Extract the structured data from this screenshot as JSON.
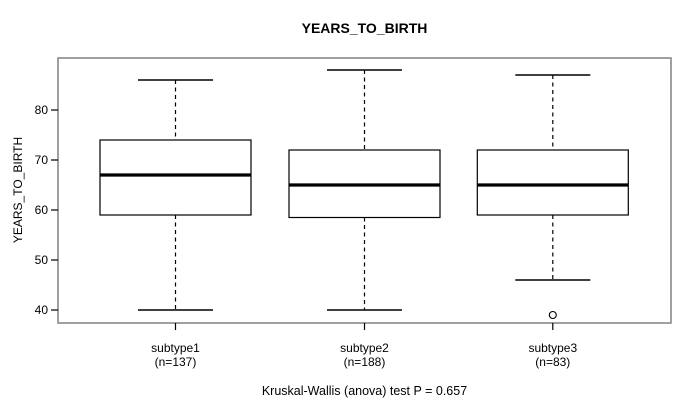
{
  "title": "YEARS_TO_BIRTH",
  "chart_data": {
    "type": "boxplot",
    "title": "YEARS_TO_BIRTH",
    "xlabel": "",
    "ylabel": "YEARS_TO_BIRTH",
    "caption": "Kruskal-Wallis (anova) test P = 0.657",
    "yticks": [
      40,
      50,
      60,
      70,
      80
    ],
    "ylim": [
      37,
      90
    ],
    "grid": false,
    "legend": null,
    "groups": [
      {
        "label": "subtype1",
        "n": 137,
        "n_label": "(n=137)",
        "whisker_low": 40,
        "q1": 59,
        "median": 67,
        "q3": 74,
        "whisker_high": 86,
        "outliers": []
      },
      {
        "label": "subtype2",
        "n": 188,
        "n_label": "(n=188)",
        "whisker_low": 40,
        "q1": 58.5,
        "median": 65,
        "q3": 72,
        "whisker_high": 88,
        "outliers": []
      },
      {
        "label": "subtype3",
        "n": 83,
        "n_label": "(n=83)",
        "whisker_low": 46,
        "q1": 59,
        "median": 65,
        "q3": 72,
        "whisker_high": 87,
        "outliers": [
          39
        ]
      }
    ],
    "colors": {
      "box_border": "#000000",
      "median": "#000000",
      "whisker": "#000000",
      "frame": "#898989",
      "background": "#ffffff",
      "text": "#000000"
    }
  }
}
